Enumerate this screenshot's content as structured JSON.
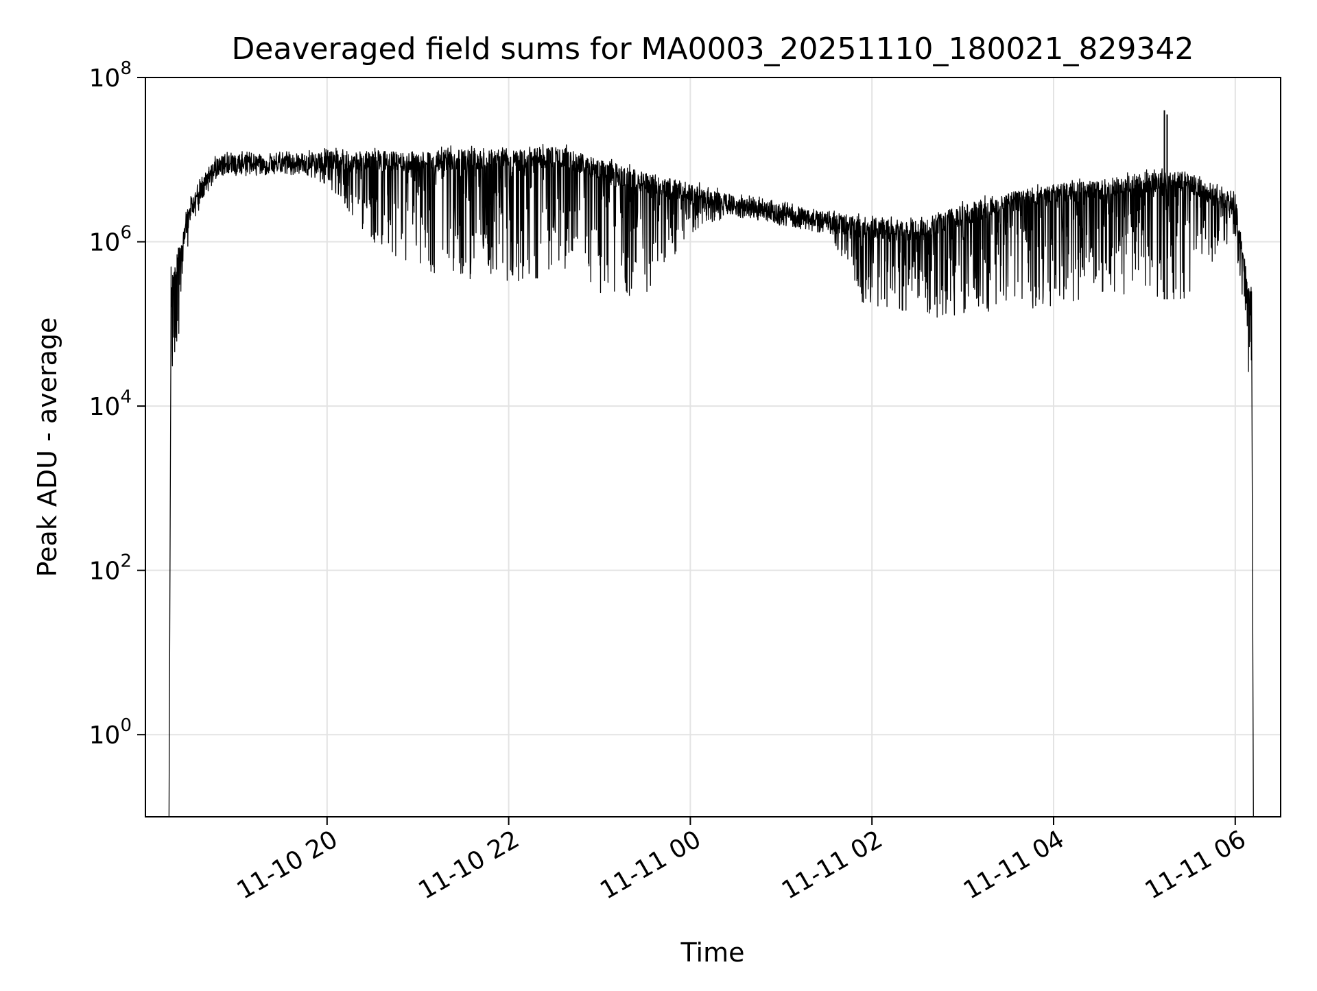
{
  "chart_data": {
    "type": "line",
    "title": "Deaveraged field sums for MA0003_20251110_180021_829342",
    "xlabel": "Time",
    "ylabel": "Peak ADU - average",
    "yscale": "log",
    "ylim_exponents": [
      -1,
      8
    ],
    "y_ticks": [
      {
        "exp": 0,
        "base": "10",
        "sup": "0"
      },
      {
        "exp": 2,
        "base": "10",
        "sup": "2"
      },
      {
        "exp": 4,
        "base": "10",
        "sup": "4"
      },
      {
        "exp": 6,
        "base": "10",
        "sup": "6"
      },
      {
        "exp": 8,
        "base": "10",
        "sup": "8"
      }
    ],
    "xlim_hours": [
      18.0,
      30.5
    ],
    "x_ticks": [
      {
        "hour": 20,
        "label": "11-10 20"
      },
      {
        "hour": 22,
        "label": "11-10 22"
      },
      {
        "hour": 24,
        "label": "11-11 00"
      },
      {
        "hour": 26,
        "label": "11-11 02"
      },
      {
        "hour": 28,
        "label": "11-11 04"
      },
      {
        "hour": 30,
        "label": "11-11 06"
      }
    ],
    "grid": true,
    "series": [
      {
        "name": "field sums",
        "color": "#000000",
        "start_hour": 18.28,
        "end_hour": 30.18,
        "envelope": [
          {
            "hour": 18.3,
            "upper_exp": 5.7,
            "lower_exp": 4.2
          },
          {
            "hour": 18.5,
            "upper_exp": 6.6,
            "lower_exp": 6.2
          },
          {
            "hour": 18.8,
            "upper_exp": 7.1,
            "lower_exp": 6.8
          },
          {
            "hour": 19.5,
            "upper_exp": 7.1,
            "lower_exp": 6.9
          },
          {
            "hour": 20.0,
            "upper_exp": 7.15,
            "lower_exp": 6.7
          },
          {
            "hour": 20.5,
            "upper_exp": 7.15,
            "lower_exp": 6.0
          },
          {
            "hour": 21.0,
            "upper_exp": 7.15,
            "lower_exp": 5.6
          },
          {
            "hour": 22.0,
            "upper_exp": 7.2,
            "lower_exp": 5.5
          },
          {
            "hour": 22.6,
            "upper_exp": 7.2,
            "lower_exp": 5.6
          },
          {
            "hour": 23.0,
            "upper_exp": 7.05,
            "lower_exp": 5.3
          },
          {
            "hour": 23.5,
            "upper_exp": 6.9,
            "lower_exp": 5.3
          },
          {
            "hour": 24.0,
            "upper_exp": 6.75,
            "lower_exp": 6.1
          },
          {
            "hour": 24.5,
            "upper_exp": 6.6,
            "lower_exp": 6.35
          },
          {
            "hour": 25.0,
            "upper_exp": 6.5,
            "lower_exp": 6.25
          },
          {
            "hour": 25.5,
            "upper_exp": 6.4,
            "lower_exp": 6.2
          },
          {
            "hour": 25.9,
            "upper_exp": 6.35,
            "lower_exp": 5.2
          },
          {
            "hour": 26.5,
            "upper_exp": 6.3,
            "lower_exp": 5.05
          },
          {
            "hour": 27.0,
            "upper_exp": 6.5,
            "lower_exp": 5.1
          },
          {
            "hour": 27.5,
            "upper_exp": 6.65,
            "lower_exp": 5.15
          },
          {
            "hour": 28.0,
            "upper_exp": 6.75,
            "lower_exp": 5.2
          },
          {
            "hour": 28.5,
            "upper_exp": 6.8,
            "lower_exp": 5.3
          },
          {
            "hour": 29.0,
            "upper_exp": 6.9,
            "lower_exp": 5.3
          },
          {
            "hour": 29.5,
            "upper_exp": 6.9,
            "lower_exp": 5.3
          },
          {
            "hour": 30.0,
            "upper_exp": 6.6,
            "lower_exp": 6.1
          },
          {
            "hour": 30.15,
            "upper_exp": 5.5,
            "lower_exp": 4.3
          }
        ],
        "spikes": [
          {
            "hour": 29.22,
            "exp": 7.6
          },
          {
            "hour": 29.25,
            "exp": 7.55
          }
        ]
      }
    ]
  }
}
